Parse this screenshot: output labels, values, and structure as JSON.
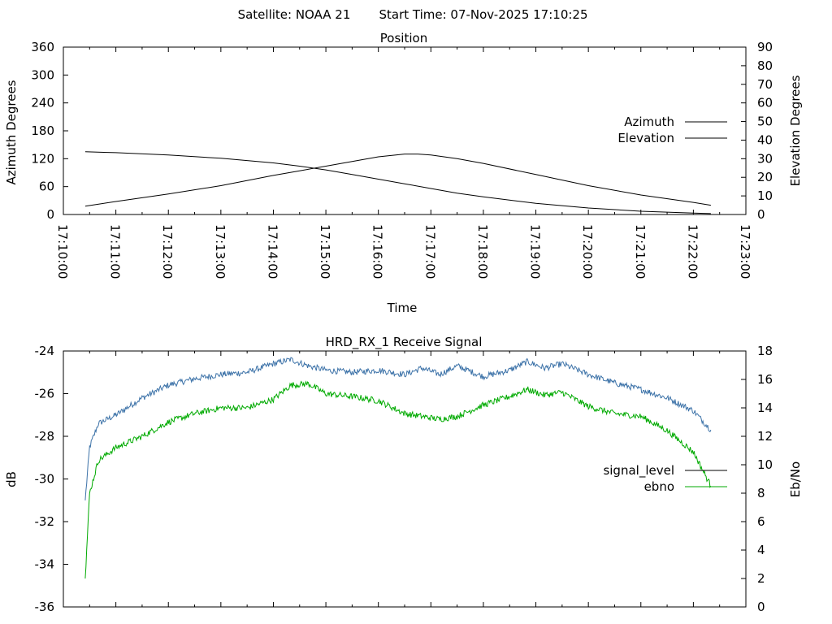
{
  "header": {
    "satellite": "Satellite: NOAA 21",
    "start_time": "Start Time: 07-Nov-2025 17:10:25"
  },
  "colors": {
    "azimuth": "#b03030",
    "elevation": "#3c72a8",
    "signal_level": "#3c72a8",
    "ebno": "#00aa00",
    "signal_level_key": "#000000"
  },
  "chart_data": [
    {
      "type": "line",
      "title": "Position",
      "xlabel": "Time",
      "ylabel": "Azimuth Degrees",
      "y2label": "Elevation Degrees",
      "xlim": [
        "17:10:00",
        "17:23:00"
      ],
      "x_ticks": [
        "17:10:00",
        "17:11:00",
        "17:12:00",
        "17:13:00",
        "17:14:00",
        "17:15:00",
        "17:16:00",
        "17:17:00",
        "17:18:00",
        "17:19:00",
        "17:20:00",
        "17:21:00",
        "17:22:00",
        "17:23:00"
      ],
      "ylim": [
        0,
        360
      ],
      "y_ticks": [
        0,
        60,
        120,
        180,
        240,
        300,
        360
      ],
      "y2lim": [
        0,
        90
      ],
      "y2_ticks": [
        0,
        10,
        20,
        30,
        40,
        50,
        60,
        70,
        80,
        90
      ],
      "legend_position": "right",
      "series": [
        {
          "name": "Azimuth",
          "axis": "y",
          "x": [
            "17:10:25",
            "17:11:00",
            "17:12:00",
            "17:13:00",
            "17:14:00",
            "17:14:30",
            "17:15:00",
            "17:15:30",
            "17:16:00",
            "17:16:30",
            "17:17:00",
            "17:17:30",
            "17:18:00",
            "17:19:00",
            "17:20:00",
            "17:21:00",
            "17:22:00",
            "17:22:20"
          ],
          "values": [
            135,
            133,
            128,
            121,
            111,
            104,
            96,
            86,
            76,
            66,
            56,
            46,
            38,
            24,
            14,
            7,
            3,
            2
          ]
        },
        {
          "name": "Elevation",
          "axis": "y2",
          "x": [
            "17:10:25",
            "17:11:00",
            "17:12:00",
            "17:13:00",
            "17:14:00",
            "17:14:30",
            "17:15:00",
            "17:15:30",
            "17:16:00",
            "17:16:30",
            "17:16:45",
            "17:17:00",
            "17:17:30",
            "17:18:00",
            "17:19:00",
            "17:20:00",
            "17:21:00",
            "17:22:00",
            "17:22:20"
          ],
          "values": [
            4.5,
            7,
            11,
            15.5,
            21,
            23.5,
            26,
            28.5,
            31,
            32.5,
            32.5,
            32,
            30,
            27.5,
            21.5,
            15.5,
            10.5,
            6.5,
            5
          ]
        }
      ]
    },
    {
      "type": "line",
      "title": "HRD_RX_1 Receive Signal",
      "xlabel": "",
      "ylabel": "dB",
      "y2label": "Eb/No",
      "xlim": [
        "17:10:00",
        "17:23:00"
      ],
      "x_ticks": [
        "17:10:00",
        "17:11:00",
        "17:12:00",
        "17:13:00",
        "17:14:00",
        "17:15:00",
        "17:16:00",
        "17:17:00",
        "17:18:00",
        "17:19:00",
        "17:20:00",
        "17:21:00",
        "17:22:00",
        "17:23:00"
      ],
      "ylim": [
        -36,
        -24
      ],
      "y_ticks": [
        -36,
        -34,
        -32,
        -30,
        -28,
        -26,
        -24
      ],
      "y2lim": [
        0,
        18
      ],
      "y2_ticks": [
        0,
        2,
        4,
        6,
        8,
        10,
        12,
        14,
        16,
        18
      ],
      "legend_position": "right",
      "series": [
        {
          "name": "signal_level",
          "axis": "y",
          "x": [
            "17:10:25",
            "17:10:30",
            "17:10:40",
            "17:11:00",
            "17:11:30",
            "17:12:00",
            "17:12:30",
            "17:13:00",
            "17:13:30",
            "17:14:00",
            "17:14:20",
            "17:14:40",
            "17:15:00",
            "17:15:30",
            "17:16:00",
            "17:16:30",
            "17:16:50",
            "17:17:10",
            "17:17:30",
            "17:18:00",
            "17:18:30",
            "17:18:50",
            "17:19:10",
            "17:19:30",
            "17:20:00",
            "17:20:30",
            "17:21:00",
            "17:21:30",
            "17:22:00",
            "17:22:20"
          ],
          "values": [
            -31,
            -28.5,
            -27.4,
            -27,
            -26.2,
            -25.6,
            -25.3,
            -25.1,
            -25,
            -24.6,
            -24.4,
            -24.7,
            -24.9,
            -25,
            -24.9,
            -25.1,
            -24.8,
            -25.1,
            -24.7,
            -25.2,
            -24.9,
            -24.5,
            -24.8,
            -24.6,
            -25.1,
            -25.5,
            -25.8,
            -26.2,
            -26.8,
            -27.7
          ]
        },
        {
          "name": "ebno",
          "axis": "y2",
          "x": [
            "17:10:25",
            "17:10:30",
            "17:10:40",
            "17:11:00",
            "17:11:30",
            "17:12:00",
            "17:12:30",
            "17:13:00",
            "17:13:30",
            "17:14:00",
            "17:14:20",
            "17:14:40",
            "17:15:00",
            "17:15:30",
            "17:16:00",
            "17:16:30",
            "17:16:50",
            "17:17:10",
            "17:17:30",
            "17:18:00",
            "17:18:30",
            "17:18:50",
            "17:19:10",
            "17:19:30",
            "17:20:00",
            "17:20:30",
            "17:21:00",
            "17:21:30",
            "17:22:00",
            "17:22:20"
          ],
          "values": [
            2,
            8,
            10.3,
            11.2,
            12,
            13,
            13.6,
            14,
            14,
            14.6,
            15.6,
            15.7,
            15,
            14.8,
            14.5,
            13.6,
            13.4,
            13.2,
            13.4,
            14.2,
            14.8,
            15.3,
            14.9,
            15.1,
            14.1,
            13.6,
            13.4,
            12.4,
            10.9,
            8.5
          ]
        }
      ]
    }
  ]
}
